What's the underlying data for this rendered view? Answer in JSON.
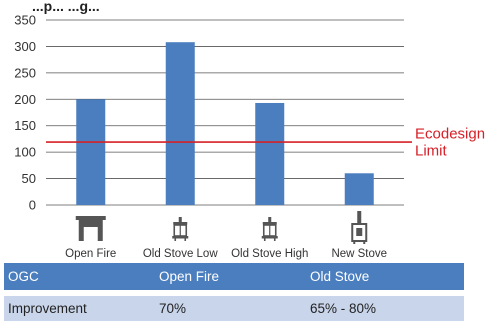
{
  "chart_data": {
    "type": "bar",
    "title": "...p...                    ...g...",
    "categories": [
      "Open Fire",
      "Old Stove Low",
      "Old Stove High",
      "New Stove"
    ],
    "icons": [
      "open-fire-icon",
      "old-stove-low-icon",
      "old-stove-high-icon",
      "new-stove-icon"
    ],
    "values": [
      200,
      308,
      193,
      60
    ],
    "ylim": [
      0,
      350
    ],
    "yticks": [
      0,
      50,
      100,
      150,
      200,
      250,
      300,
      350
    ],
    "grid": true,
    "bar_color": "#4a7ebf",
    "reference_line": {
      "value": 119,
      "label_lines": [
        "Ecodesign",
        "Limit"
      ],
      "color": "#d62027"
    }
  },
  "table": {
    "header": [
      "OGC",
      "Open Fire",
      "Old Stove"
    ],
    "rows": [
      [
        "Improvement",
        "70%",
        "65% - 80%"
      ]
    ],
    "header_color": "#4a7ebf",
    "row_color": "#c9d5ea"
  }
}
